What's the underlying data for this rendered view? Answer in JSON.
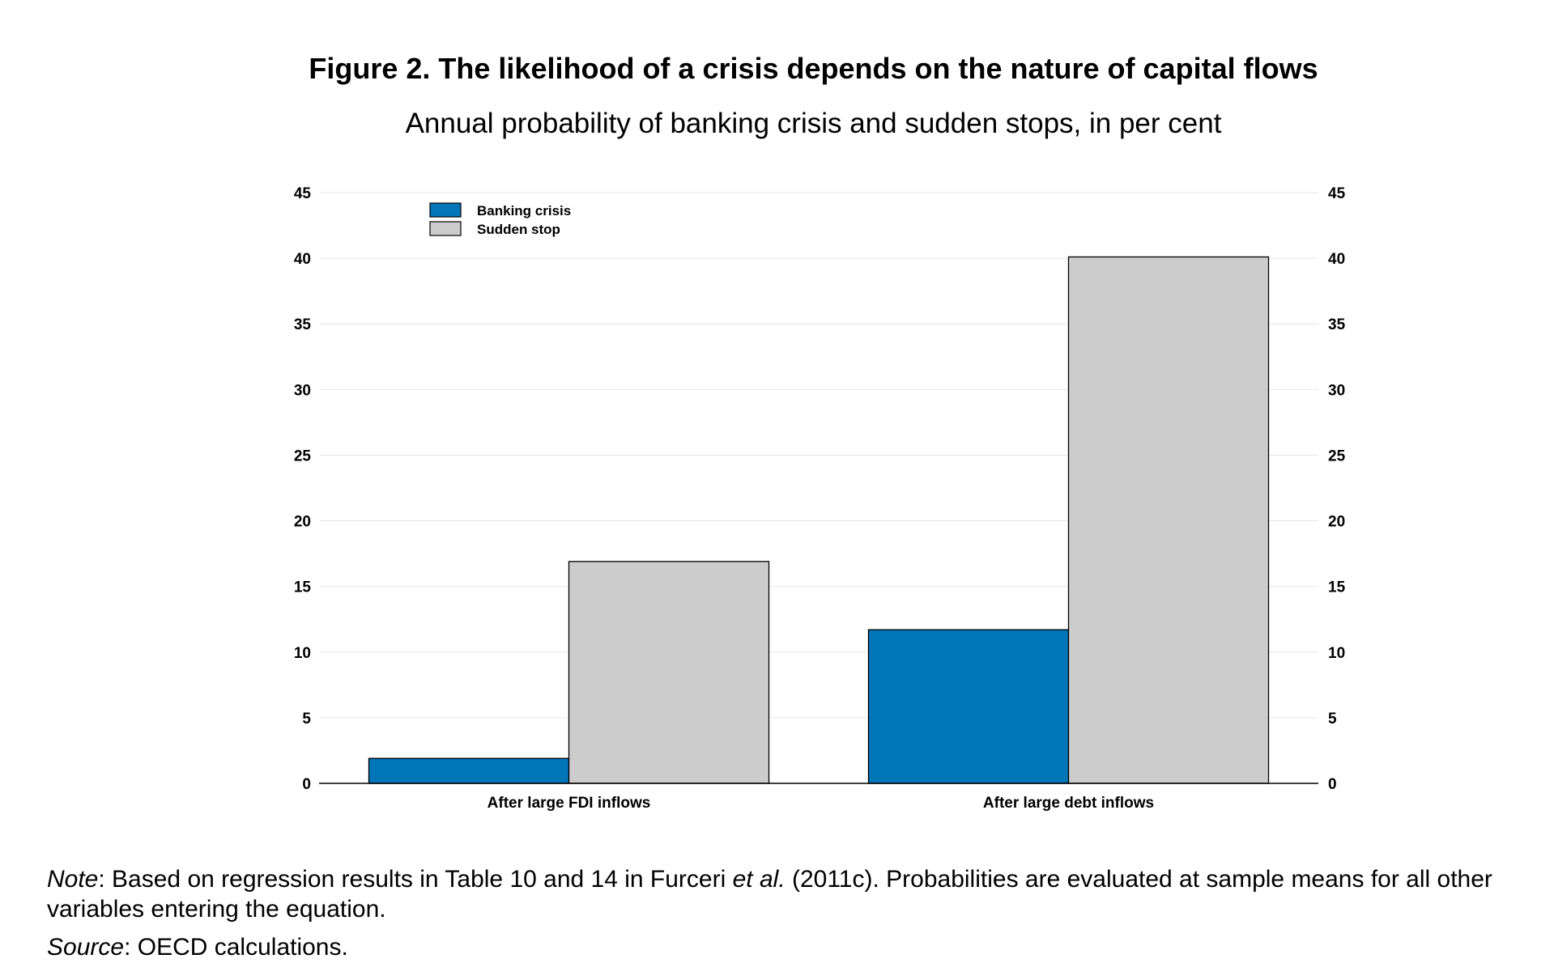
{
  "title": "Figure 2.  The likelihood of a crisis depends on the nature of capital flows",
  "subtitle": "Annual probability of banking crisis and sudden stops, in per cent",
  "note": {
    "label": "Note",
    "part1": ": Based on regression results in Table 10 and 14 in Furceri ",
    "etal": "et al.",
    "part2": " (2011c). Probabilities are evaluated at sample means for all other variables entering the equation."
  },
  "source": {
    "label": "Source",
    "text": ": OECD calculations."
  },
  "chart_data": {
    "type": "bar",
    "categories": [
      "After large FDI inflows",
      "After large debt inflows"
    ],
    "series": [
      {
        "name": "Banking crisis",
        "values": [
          1.9,
          11.7
        ],
        "color": "#0075B8"
      },
      {
        "name": "Sudden stop",
        "values": [
          16.9,
          40.1
        ],
        "color": "#CCCCCC"
      }
    ],
    "ylim": [
      0,
      45
    ],
    "yticks": [
      0,
      5,
      10,
      15,
      20,
      25,
      30,
      35,
      40,
      45
    ],
    "y2ticks": [
      0,
      5,
      10,
      15,
      20,
      25,
      30,
      35,
      40,
      45
    ],
    "grid": true,
    "legend": "top-left",
    "xlabel": "",
    "ylabel": ""
  }
}
